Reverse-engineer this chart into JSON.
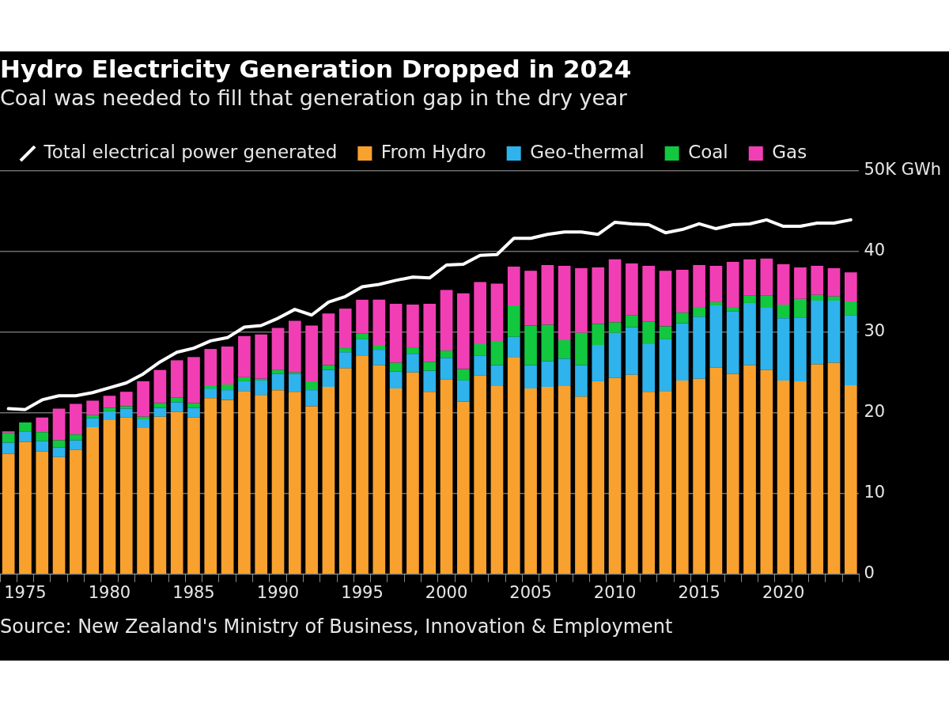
{
  "chart_data": {
    "type": "bar",
    "title": "Hydro Electricity Generation Dropped in 2024",
    "subtitle": "Coal was needed to fill that generation gap in the dry year",
    "categories": [
      null,
      "1975",
      null,
      null,
      null,
      null,
      "1980",
      null,
      null,
      null,
      null,
      "1985",
      null,
      null,
      null,
      null,
      "1990",
      null,
      null,
      null,
      null,
      "1995",
      null,
      null,
      null,
      null,
      "2000",
      null,
      null,
      null,
      null,
      "2005",
      null,
      null,
      null,
      null,
      "2010",
      null,
      null,
      null,
      null,
      "2015",
      null,
      null,
      null,
      null,
      "2020",
      null,
      null,
      null,
      null
    ],
    "stacked": true,
    "series": [
      {
        "name": "Total electrical power generated",
        "type": "line",
        "color": "#ffffff",
        "values": [
          20.5,
          20.4,
          21.6,
          22.1,
          22.1,
          22.5,
          23.1,
          23.7,
          24.8,
          26.3,
          27.5,
          28.0,
          28.9,
          29.3,
          30.6,
          30.8,
          31.7,
          32.8,
          32.1,
          33.7,
          34.4,
          35.6,
          35.9,
          36.4,
          36.8,
          36.7,
          38.3,
          38.4,
          39.5,
          39.6,
          41.6,
          41.6,
          42.1,
          42.4,
          42.4,
          42.1,
          43.6,
          43.4,
          43.3,
          42.3,
          42.7,
          43.4,
          42.8,
          43.3,
          43.4,
          43.9,
          43.1,
          43.1,
          43.5,
          43.5,
          43.9
        ]
      },
      {
        "name": "From Hydro",
        "color": "#f9a12e",
        "values": [
          14.9,
          16.4,
          15.2,
          14.5,
          15.4,
          18.2,
          19.1,
          19.4,
          18.1,
          19.5,
          20.1,
          19.4,
          21.8,
          21.6,
          22.7,
          22.2,
          22.8,
          22.6,
          20.8,
          23.2,
          25.5,
          27.1,
          25.9,
          23.0,
          25.0,
          22.6,
          24.1,
          21.4,
          24.6,
          23.3,
          26.9,
          23.0,
          23.2,
          23.3,
          22.0,
          23.9,
          24.3,
          24.7,
          22.6,
          22.7,
          24.0,
          24.2,
          25.6,
          24.8,
          25.9,
          25.3,
          24.0,
          23.9,
          26.0,
          26.2,
          23.4
        ]
      },
      {
        "name": "Geo-thermal",
        "color": "#2eb3ec",
        "values": [
          1.4,
          1.3,
          1.3,
          1.2,
          1.2,
          1.1,
          1.1,
          1.1,
          1.1,
          1.1,
          1.2,
          1.2,
          1.2,
          1.2,
          1.2,
          1.8,
          2.0,
          2.2,
          2.0,
          2.1,
          2.0,
          2.0,
          1.9,
          2.1,
          2.3,
          2.6,
          2.7,
          2.6,
          2.5,
          2.6,
          2.5,
          2.9,
          3.2,
          3.4,
          3.9,
          4.5,
          5.6,
          5.9,
          5.9,
          6.4,
          7.1,
          7.7,
          7.7,
          7.8,
          7.7,
          7.7,
          7.7,
          7.9,
          7.9,
          7.7,
          8.7
        ]
      },
      {
        "name": "Coal",
        "color": "#12c83f",
        "values": [
          1.2,
          1.1,
          1.1,
          0.9,
          0.7,
          0.4,
          0.4,
          0.3,
          0.3,
          0.6,
          0.6,
          0.6,
          0.4,
          0.7,
          0.5,
          0.2,
          0.5,
          0.2,
          1.1,
          0.6,
          0.5,
          0.7,
          0.6,
          1.1,
          0.8,
          1.1,
          0.9,
          1.4,
          1.4,
          3.0,
          3.9,
          4.9,
          4.5,
          2.3,
          4.0,
          2.6,
          1.3,
          1.5,
          2.8,
          1.6,
          1.3,
          1.2,
          0.4,
          0.5,
          0.9,
          1.5,
          1.7,
          2.3,
          0.7,
          0.5,
          1.7
        ]
      },
      {
        "name": "Gas",
        "color": "#f23eb4",
        "values": [
          0.2,
          0.0,
          1.8,
          3.9,
          3.8,
          1.8,
          1.5,
          1.8,
          4.4,
          4.1,
          4.6,
          5.7,
          4.5,
          4.7,
          5.1,
          5.5,
          5.2,
          6.4,
          6.9,
          6.4,
          4.9,
          4.2,
          5.6,
          7.3,
          5.3,
          7.2,
          7.5,
          9.4,
          7.7,
          7.1,
          4.8,
          6.8,
          7.4,
          9.2,
          8.0,
          7.0,
          7.8,
          6.4,
          6.9,
          6.9,
          5.3,
          5.2,
          4.5,
          5.6,
          4.5,
          4.6,
          5.0,
          3.9,
          3.6,
          3.5,
          3.6
        ]
      }
    ],
    "ylim": [
      0,
      50
    ],
    "yticks": [
      0,
      10,
      20,
      30,
      40,
      {
        "value": 50,
        "label": "50K GWh"
      }
    ],
    "grid": "y",
    "legend": "top left",
    "annotations": [
      "Source: New Zealand's Ministry of Business, Innovation & Employment"
    ]
  }
}
